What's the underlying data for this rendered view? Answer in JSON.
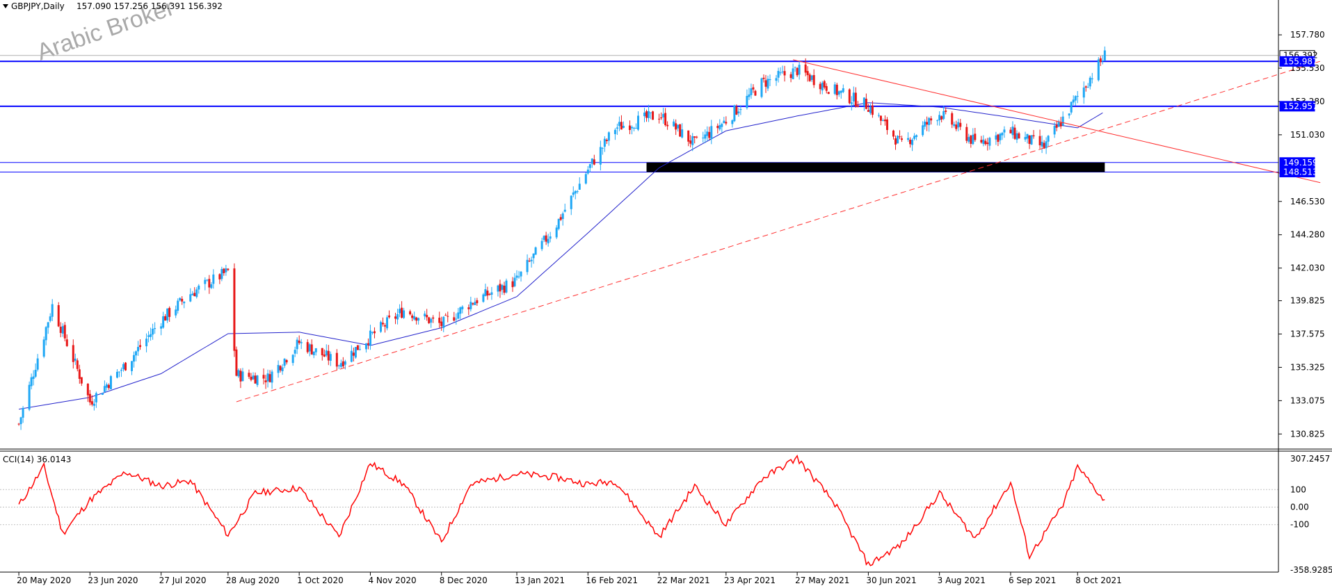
{
  "header": {
    "symbol": "GBPJPY,Daily",
    "ohlc": "157.090 157.256 156.391 156.392"
  },
  "watermark": "Arabic Broker",
  "indicator": {
    "label": "CCI(14) 36.0143"
  },
  "colors": {
    "bull": "#1ea7f5",
    "bear": "#e81818",
    "ma": "#2222cc",
    "level": "#0000ff",
    "trend": "#ff3030",
    "cci": "#ff0000",
    "zone": "#000000"
  },
  "chart_data": [
    {
      "type": "candlestick",
      "title": "",
      "xlabel": "",
      "ylabel": "",
      "ylim": [
        129.9,
        159.1
      ],
      "x_ticks": [
        "20 May 2020",
        "23 Jun 2020",
        "27 Jul 2020",
        "28 Aug 2020",
        "1 Oct 2020",
        "4 Nov 2020",
        "8 Dec 2020",
        "13 Jan 2021",
        "16 Feb 2021",
        "22 Mar 2021",
        "23 Apr 2021",
        "27 May 2021",
        "30 Jun 2021",
        "3 Aug 2021",
        "6 Sep 2021",
        "8 Oct 2021"
      ],
      "y_ticks": [
        "157.780",
        "155.530",
        "153.280",
        "151.030",
        "146.530",
        "144.280",
        "142.030",
        "139.825",
        "137.575",
        "135.325",
        "133.075",
        "130.825"
      ],
      "close_series": {
        "dates": [
          "20 May 2020",
          "5 Jun 2020",
          "23 Jun 2020",
          "10 Jul 2020",
          "27 Jul 2020",
          "10 Aug 2020",
          "28 Aug 2020",
          "1 Sep 2020",
          "16 Sep 2020",
          "1 Oct 2020",
          "20 Oct 2020",
          "4 Nov 2020",
          "20 Nov 2020",
          "8 Dec 2020",
          "22 Dec 2020",
          "13 Jan 2021",
          "1 Feb 2021",
          "16 Feb 2021",
          "1 Mar 2021",
          "22 Mar 2021",
          "8 Apr 2021",
          "23 Apr 2021",
          "10 May 2021",
          "27 May 2021",
          "14 Jun 2021",
          "30 Jun 2021",
          "16 Jul 2021",
          "3 Aug 2021",
          "20 Aug 2021",
          "6 Sep 2021",
          "22 Sep 2021",
          "8 Oct 2021",
          "21 Oct 2021"
        ],
        "values": [
          131.5,
          139.5,
          133.0,
          135.5,
          138.5,
          140.3,
          141.8,
          134.8,
          134.6,
          137.0,
          135.6,
          137.4,
          139.2,
          138.2,
          139.7,
          141.2,
          145.0,
          148.7,
          151.5,
          152.4,
          150.4,
          152.0,
          154.5,
          155.4,
          154.0,
          153.0,
          150.3,
          152.5,
          150.5,
          151.2,
          150.2,
          153.6,
          156.39
        ]
      },
      "moving_average": {
        "dates": [
          "20 May 2020",
          "23 Jun 2020",
          "27 Jul 2020",
          "28 Aug 2020",
          "1 Oct 2020",
          "4 Nov 2020",
          "8 Dec 2020",
          "13 Jan 2021",
          "16 Feb 2021",
          "22 Mar 2021",
          "23 Apr 2021",
          "27 May 2021",
          "30 Jun 2021",
          "3 Aug 2021",
          "6 Sep 2021",
          "8 Oct 2021",
          "21 Oct 2021"
        ],
        "values": [
          132.5,
          133.3,
          134.9,
          137.6,
          137.7,
          136.8,
          138.0,
          140.1,
          144.4,
          148.8,
          151.3,
          152.3,
          153.2,
          152.9,
          152.2,
          151.5,
          152.6
        ]
      },
      "horizontal_levels": [
        155.987,
        152.957,
        149.159,
        148.513
      ],
      "support_zone": {
        "from": 148.513,
        "to": 149.159,
        "start": "16 Mar 2021",
        "end": "21 Oct 2021"
      },
      "trendlines": [
        {
          "style": "dashed",
          "from": {
            "date": "1 Sep 2020",
            "value": 133.0
          },
          "to": {
            "date": "1 Feb 2022",
            "value": 156.0
          }
        },
        {
          "style": "solid",
          "from": {
            "date": "25 May 2021",
            "value": 156.1
          },
          "to": {
            "date": "1 Feb 2022",
            "value": 147.8
          }
        }
      ],
      "price_tags": [
        {
          "label": "156.392",
          "value": 156.392,
          "style": "white"
        },
        {
          "label": "155.987",
          "value": 155.987,
          "style": "blue"
        },
        {
          "label": "152.957",
          "value": 152.957,
          "style": "blue"
        },
        {
          "label": "149.159",
          "value": 149.159,
          "style": "blue"
        },
        {
          "label": "148.513",
          "value": 148.513,
          "style": "blue"
        }
      ]
    },
    {
      "type": "line",
      "title": "CCI(14) 36.0143",
      "ylim": [
        -358.9285,
        307.2457
      ],
      "y_ticks": [
        "307.2457",
        "100",
        "0.00",
        "-100",
        "-358.9285"
      ],
      "levels": [
        100,
        0,
        -100
      ],
      "series": [
        {
          "dates": [
            "20 May 2020",
            "1 Jun 2020",
            "10 Jun 2020",
            "23 Jun 2020",
            "10 Jul 2020",
            "27 Jul 2020",
            "10 Aug 2020",
            "28 Aug 2020",
            "10 Sep 2020",
            "1 Oct 2020",
            "20 Oct 2020",
            "4 Nov 2020",
            "20 Nov 2020",
            "8 Dec 2020",
            "22 Dec 2020",
            "13 Jan 2021",
            "1 Feb 2021",
            "16 Feb 2021",
            "1 Mar 2021",
            "22 Mar 2021",
            "8 Apr 2021",
            "23 Apr 2021",
            "10 May 2021",
            "27 May 2021",
            "14 Jun 2021",
            "30 Jun 2021",
            "16 Jul 2021",
            "3 Aug 2021",
            "20 Aug 2021",
            "6 Sep 2021",
            "15 Sep 2021",
            "1 Oct 2021",
            "8 Oct 2021",
            "21 Oct 2021"
          ],
          "values": [
            10,
            230,
            -150,
            40,
            200,
            120,
            150,
            -160,
            80,
            110,
            -170,
            250,
            130,
            -200,
            130,
            190,
            170,
            130,
            150,
            -170,
            120,
            -100,
            160,
            280,
            20,
            -330,
            -210,
            80,
            -180,
            140,
            -280,
            10,
            230,
            36
          ]
        }
      ]
    }
  ]
}
